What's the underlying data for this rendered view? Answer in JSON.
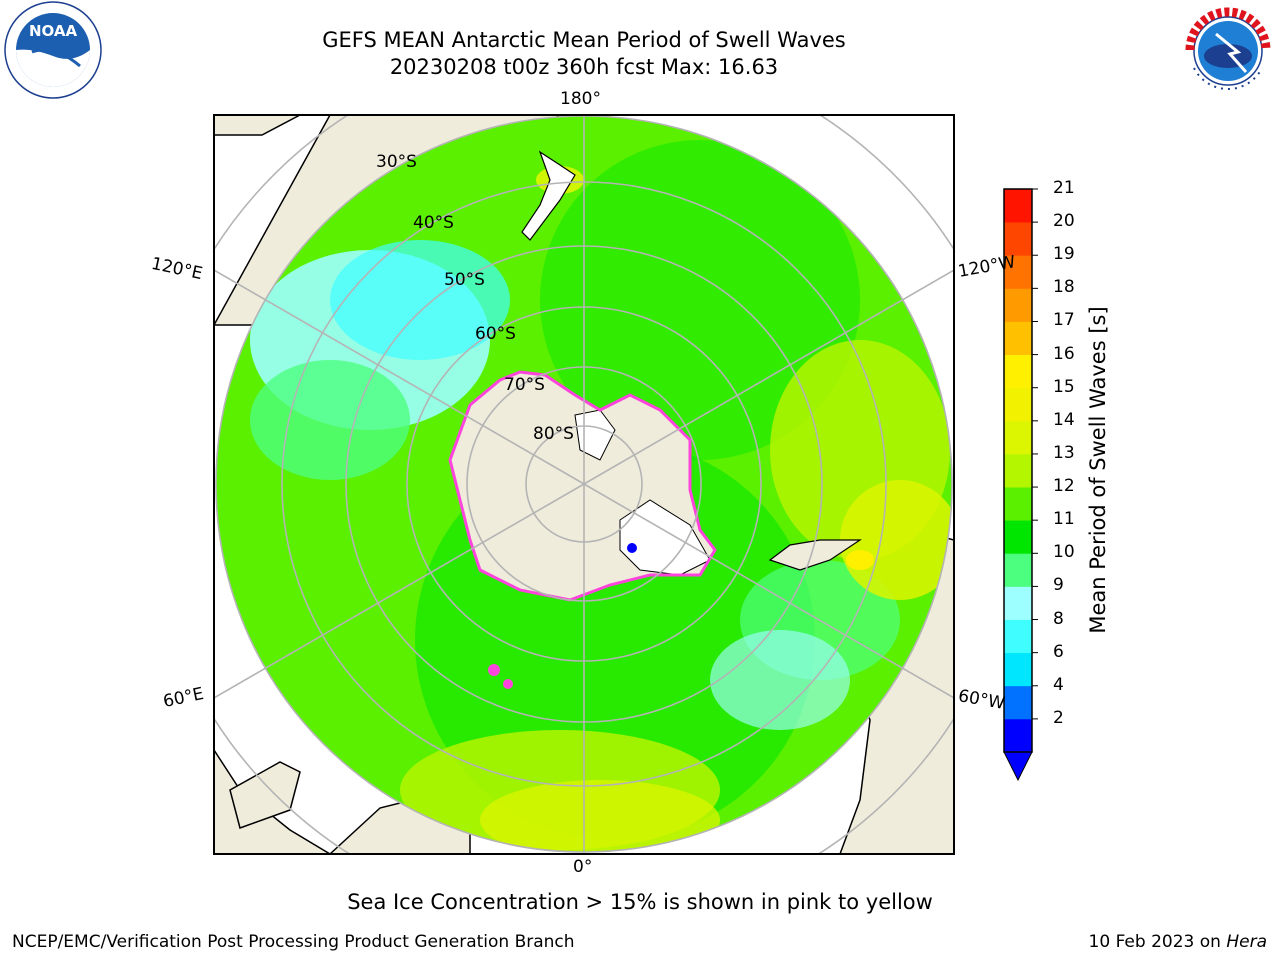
{
  "header": {
    "title_line1": "GEFS MEAN Antarctic Mean Period of Swell Waves",
    "title_line2": "20230208 t00z 360h fcst   Max: 16.63"
  },
  "logos": {
    "left": {
      "name": "noaa-logo",
      "text": "NOAA",
      "ring_text": "NATIONAL OCEANIC AND ATMOSPHERIC ADMINISTRATION · U.S. DEPARTMENT OF COMMERCE"
    },
    "right": {
      "name": "nws-logo",
      "ring_text": "NATIONAL WEATHER SERVICE"
    }
  },
  "map": {
    "projection": "south-polar-stereographic",
    "longitude_labels": [
      "180°",
      "120°E",
      "120°W",
      "60°E",
      "60°W",
      "0°"
    ],
    "latitude_labels": [
      "30°S",
      "40°S",
      "50°S",
      "60°S",
      "70°S",
      "80°S"
    ],
    "colors": {
      "land": "#efecdc",
      "ice_edge": "#ff44dd",
      "grid": "#b4b4b4"
    }
  },
  "colorbar": {
    "label": "Mean Period of Swell Waves [s]",
    "ticks": [
      "21",
      "20",
      "19",
      "18",
      "17",
      "16",
      "15",
      "14",
      "13",
      "12",
      "11",
      "10",
      "9",
      "8",
      "6",
      "4",
      "2"
    ],
    "bins": [
      {
        "color": "#0000ff"
      },
      {
        "color": "#0072ff"
      },
      {
        "color": "#00e6ff"
      },
      {
        "color": "#40fdff"
      },
      {
        "color": "#9dffff"
      },
      {
        "color": "#4dff7f"
      },
      {
        "color": "#00e600"
      },
      {
        "color": "#5af000"
      },
      {
        "color": "#b4f500"
      },
      {
        "color": "#dcf500"
      },
      {
        "color": "#f2f200"
      },
      {
        "color": "#fff000"
      },
      {
        "color": "#ffc000"
      },
      {
        "color": "#ff9b00"
      },
      {
        "color": "#ff7300"
      },
      {
        "color": "#ff4600"
      },
      {
        "color": "#ff1400"
      }
    ],
    "extend": "min"
  },
  "chart_data": {
    "type": "heatmap",
    "variable": "Mean Period of Swell Waves",
    "units": "s",
    "max": 16.63,
    "color_levels": [
      2,
      4,
      6,
      8,
      9,
      10,
      11,
      12,
      13,
      14,
      15,
      16,
      17,
      18,
      19,
      20,
      21
    ]
  },
  "note": "Sea Ice Concentration > 15% is shown in pink to yellow",
  "footer": {
    "left": "NCEP/EMC/Verification Post Processing Product Generation Branch",
    "date": "10 Feb 2023 on",
    "host": "Hera"
  }
}
